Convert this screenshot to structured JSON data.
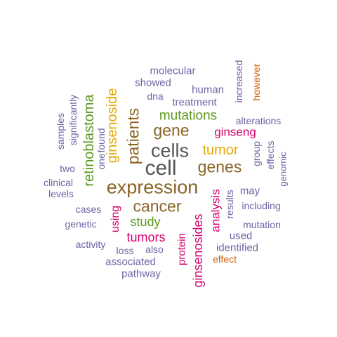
{
  "palette": {
    "dark": "#555555",
    "brown": "#8a6424",
    "gold": "#e6a800",
    "green": "#5c9a1e",
    "magenta": "#d6006e",
    "purple": "#6f63a4",
    "orange": "#d35f0a"
  },
  "words": [
    {
      "text": "cell"
    },
    {
      "text": "cells"
    },
    {
      "text": "expression"
    },
    {
      "text": "cancer"
    },
    {
      "text": "genes"
    },
    {
      "text": "gene"
    },
    {
      "text": "tumor"
    },
    {
      "text": "patients"
    },
    {
      "text": "ginsenoside"
    },
    {
      "text": "retinoblastoma"
    },
    {
      "text": "mutations"
    },
    {
      "text": "ginsenosides"
    },
    {
      "text": "tumors"
    },
    {
      "text": "study"
    },
    {
      "text": "ginseng"
    },
    {
      "text": "analysis"
    },
    {
      "text": "protein"
    },
    {
      "text": "using"
    },
    {
      "text": "results"
    },
    {
      "text": "may"
    },
    {
      "text": "molecular"
    },
    {
      "text": "showed"
    },
    {
      "text": "treatment"
    },
    {
      "text": "human"
    },
    {
      "text": "dna"
    },
    {
      "text": "increased"
    },
    {
      "text": "however"
    },
    {
      "text": "alterations"
    },
    {
      "text": "significantly"
    },
    {
      "text": "samples"
    },
    {
      "text": "found"
    },
    {
      "text": "one"
    },
    {
      "text": "two"
    },
    {
      "text": "clinical"
    },
    {
      "text": "levels"
    },
    {
      "text": "cases"
    },
    {
      "text": "genetic"
    },
    {
      "text": "activity"
    },
    {
      "text": "loss"
    },
    {
      "text": "also"
    },
    {
      "text": "associated"
    },
    {
      "text": "pathway"
    },
    {
      "text": "identified"
    },
    {
      "text": "effect"
    },
    {
      "text": "used"
    },
    {
      "text": "mutation"
    },
    {
      "text": "including"
    },
    {
      "text": "group"
    },
    {
      "text": "effects"
    },
    {
      "text": "genomic"
    }
  ]
}
